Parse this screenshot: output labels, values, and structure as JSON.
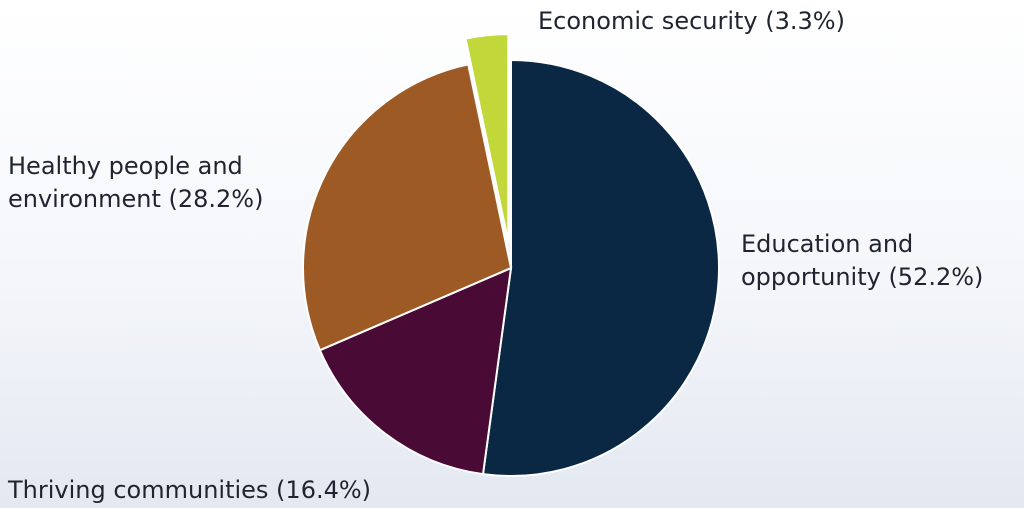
{
  "chart_data": {
    "type": "pie",
    "title": "",
    "start_angle_deg": 0,
    "direction": "clockwise",
    "slices": [
      {
        "label_lines": [
          "Education and",
          "opportunity (52.2%)"
        ],
        "value": 52.2,
        "color": "#0a2844",
        "exploded": false
      },
      {
        "label_lines": [
          "Thriving communities (16.4%)"
        ],
        "value": 16.4,
        "color": "#4a0a36",
        "exploded": false
      },
      {
        "label_lines": [
          "Healthy people and",
          "environment (28.2%)"
        ],
        "value": 28.2,
        "color": "#9e5a24",
        "exploded": false
      },
      {
        "label_lines": [
          "Economic security (3.3%)"
        ],
        "value": 3.3,
        "color": "#c2d73a",
        "exploded": true
      }
    ]
  }
}
